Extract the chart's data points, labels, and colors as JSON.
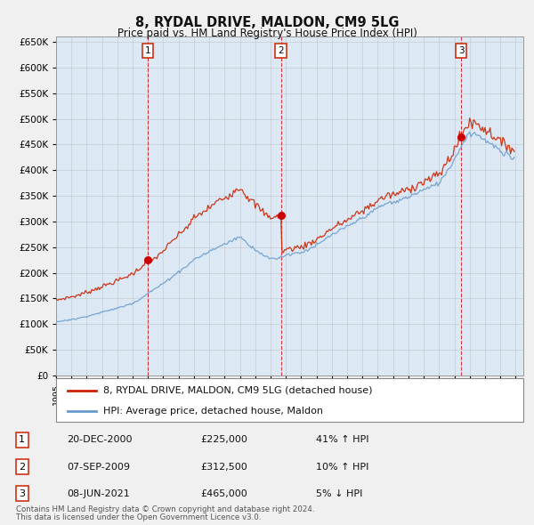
{
  "title": "8, RYDAL DRIVE, MALDON, CM9 5LG",
  "subtitle": "Price paid vs. HM Land Registry's House Price Index (HPI)",
  "legend_property": "8, RYDAL DRIVE, MALDON, CM9 5LG (detached house)",
  "legend_hpi": "HPI: Average price, detached house, Maldon",
  "footer1": "Contains HM Land Registry data © Crown copyright and database right 2024.",
  "footer2": "This data is licensed under the Open Government Licence v3.0.",
  "sales": [
    {
      "label": "1",
      "date": "20-DEC-2000",
      "price": 225000,
      "pct": "41%",
      "dir": "↑"
    },
    {
      "label": "2",
      "date": "07-SEP-2009",
      "price": 312500,
      "pct": "10%",
      "dir": "↑"
    },
    {
      "label": "3",
      "date": "08-JUN-2021",
      "price": 465000,
      "pct": "5%",
      "dir": "↓"
    }
  ],
  "sale_years": [
    2000.97,
    2009.68,
    2021.44
  ],
  "sale_prices": [
    225000,
    312500,
    465000
  ],
  "background_color": "#dce9f5",
  "grid_color": "#bbbbbb",
  "hpi_color": "#6699cc",
  "property_color": "#cc2200",
  "sale_dot_color": "#cc0000",
  "vline_color": "#cc0000",
  "ylim": [
    0,
    660000
  ],
  "yticks": [
    0,
    50000,
    100000,
    150000,
    200000,
    250000,
    300000,
    350000,
    400000,
    450000,
    500000,
    550000,
    600000,
    650000
  ]
}
